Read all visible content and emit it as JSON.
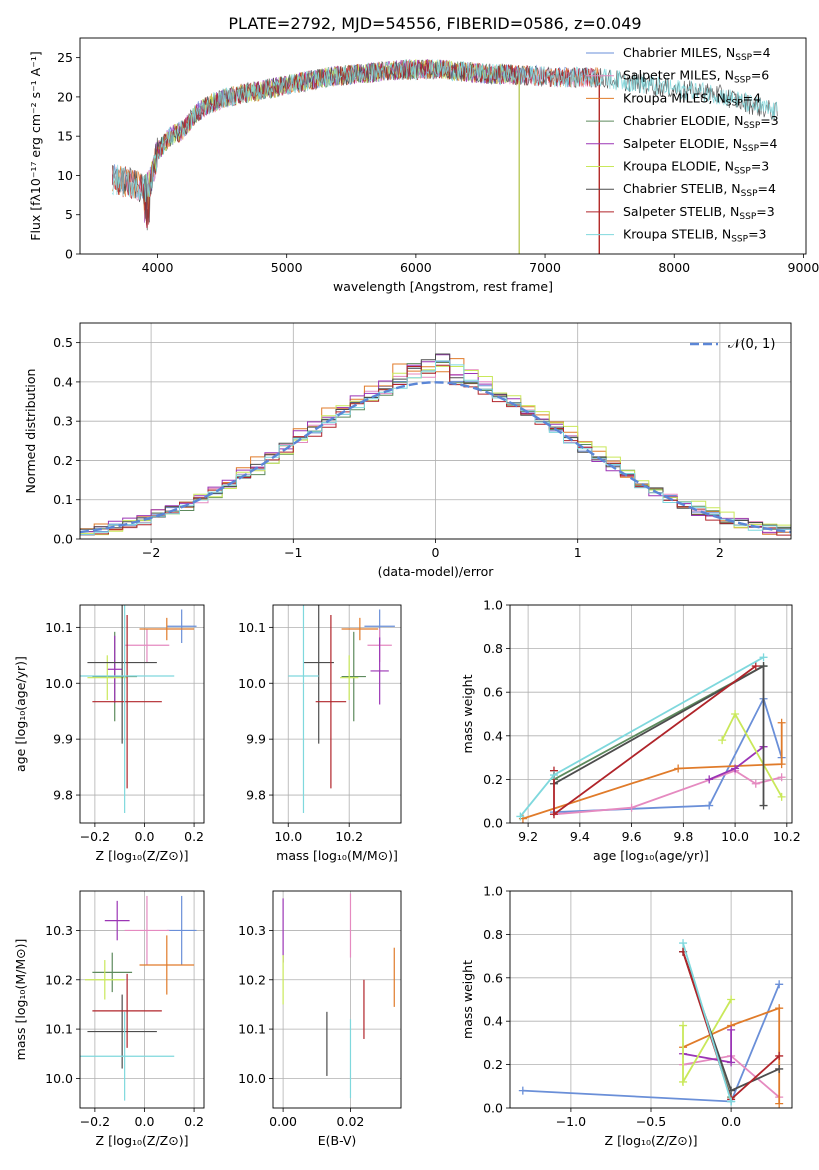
{
  "figure_title": "PLATE=2792, MJD=54556, FIBERID=0586, z=0.049",
  "colors": {
    "chabrier_miles": "#6a8fd8",
    "salpeter_miles": "#e58ac0",
    "kroupa_miles": "#e07b2a",
    "chabrier_elodie": "#5d8a5d",
    "salpeter_elodie": "#9b35b5",
    "kroupa_elodie": "#c9e85a",
    "chabrier_stelib": "#4d4d4d",
    "salpeter_stelib": "#b0242a",
    "kroupa_stelib": "#7fd8dd",
    "normal": "#5b86d6"
  },
  "chart_data": [
    {
      "id": "spectrum",
      "type": "line",
      "xlabel": "wavelength [Angstrom, rest frame]",
      "ylabel": "Flux [fλ10⁻¹⁷ erg cm⁻² s⁻¹ A⁻¹]",
      "xlim": [
        3400,
        9020
      ],
      "ylim": [
        0,
        27.5
      ],
      "xticks": [
        4000,
        5000,
        6000,
        7000,
        8000,
        9000
      ],
      "yticks": [
        0,
        5,
        10,
        15,
        20,
        25
      ],
      "grid": false,
      "legend_position": "top-right",
      "continuum": {
        "x": [
          3650,
          3800,
          3900,
          3950,
          4000,
          4100,
          4200,
          4300,
          4400,
          4500,
          4700,
          5000,
          5300,
          5600,
          5900,
          6200,
          6500,
          6800,
          7100,
          7400,
          7700,
          8000,
          8300,
          8600,
          8800
        ],
        "y": [
          9.5,
          9.0,
          8.0,
          9.5,
          13.0,
          15.0,
          15.8,
          18.0,
          19.0,
          19.8,
          20.5,
          21.5,
          22.5,
          23.0,
          23.5,
          23.5,
          23.0,
          22.8,
          22.5,
          22.5,
          21.8,
          21.0,
          20.5,
          19.0,
          18.0
        ]
      },
      "series": [
        {
          "name": "Chabrier MILES, N_SSP=4",
          "color": "#6a8fd8",
          "xrange": [
            3650,
            7420
          ]
        },
        {
          "name": "Salpeter MILES, N_SSP=6",
          "color": "#e58ac0",
          "xrange": [
            3650,
            7420
          ]
        },
        {
          "name": "Kroupa MILES, N_SSP=4",
          "color": "#e07b2a",
          "xrange": [
            3650,
            7420
          ]
        },
        {
          "name": "Chabrier ELODIE, N_SSP=3",
          "color": "#5d8a5d",
          "xrange": [
            3900,
            6800
          ]
        },
        {
          "name": "Salpeter ELODIE, N_SSP=4",
          "color": "#9b35b5",
          "xrange": [
            3900,
            6800
          ]
        },
        {
          "name": "Kroupa ELODIE, N_SSP=3",
          "color": "#c9e85a",
          "xrange": [
            3900,
            6800
          ]
        },
        {
          "name": "Chabrier STELIB, N_SSP=4",
          "color": "#4d4d4d",
          "xrange": [
            3650,
            8800
          ]
        },
        {
          "name": "Salpeter STELIB, N_SSP=3",
          "color": "#b0242a",
          "xrange": [
            3650,
            7420
          ]
        },
        {
          "name": "Kroupa STELIB, N_SSP=3",
          "color": "#7fd8dd",
          "xrange": [
            3650,
            8800
          ]
        }
      ],
      "legend_entries": [
        {
          "base": "Chabrier MILES, N",
          "sub": "SSP",
          "tail": "=4",
          "color": "#6a8fd8"
        },
        {
          "base": "Salpeter MILES, N",
          "sub": "SSP",
          "tail": "=6",
          "color": "#e58ac0"
        },
        {
          "base": "Kroupa MILES, N",
          "sub": "SSP",
          "tail": "=4",
          "color": "#e07b2a"
        },
        {
          "base": "Chabrier ELODIE, N",
          "sub": "SSP",
          "tail": "=3",
          "color": "#5d8a5d"
        },
        {
          "base": "Salpeter ELODIE, N",
          "sub": "SSP",
          "tail": "=4",
          "color": "#9b35b5"
        },
        {
          "base": "Kroupa ELODIE, N",
          "sub": "SSP",
          "tail": "=3",
          "color": "#c9e85a"
        },
        {
          "base": "Chabrier STELIB, N",
          "sub": "SSP",
          "tail": "=4",
          "color": "#4d4d4d"
        },
        {
          "base": "Salpeter STELIB, N",
          "sub": "SSP",
          "tail": "=3",
          "color": "#b0242a"
        },
        {
          "base": "Kroupa STELIB, N",
          "sub": "SSP",
          "tail": "=3",
          "color": "#7fd8dd"
        }
      ]
    },
    {
      "id": "residual_hist",
      "type": "histogram",
      "xlabel": "(data-model)/error",
      "ylabel": "Normed distribution",
      "xlim": [
        -2.5,
        2.5
      ],
      "ylim": [
        0,
        0.55
      ],
      "xticks": [
        -2,
        -1,
        0,
        1,
        2
      ],
      "yticks": [
        0.0,
        0.1,
        0.2,
        0.3,
        0.4,
        0.5
      ],
      "grid": true,
      "legend_position": "top-right",
      "reference": {
        "name": "𝒩(0, 1)",
        "mu": 0,
        "sigma": 1,
        "color": "#5b86d6"
      },
      "bin_width": 0.1,
      "series": [
        {
          "color": "#6a8fd8",
          "offset": 0.0,
          "amp": 1.0,
          "jitter": 0.01
        },
        {
          "color": "#e58ac0",
          "offset": 0.02,
          "amp": 1.02,
          "jitter": 0.012
        },
        {
          "color": "#e07b2a",
          "offset": -0.03,
          "amp": 1.05,
          "jitter": 0.015
        },
        {
          "color": "#5d8a5d",
          "offset": 0.03,
          "amp": 1.0,
          "jitter": 0.012
        },
        {
          "color": "#9b35b5",
          "offset": -0.02,
          "amp": 1.03,
          "jitter": 0.013
        },
        {
          "color": "#c9e85a",
          "offset": 0.04,
          "amp": 1.04,
          "jitter": 0.016
        },
        {
          "color": "#4d4d4d",
          "offset": -0.01,
          "amp": 1.01,
          "jitter": 0.011
        },
        {
          "color": "#b0242a",
          "offset": 0.01,
          "amp": 0.99,
          "jitter": 0.012
        },
        {
          "color": "#7fd8dd",
          "offset": 0.0,
          "amp": 1.0,
          "jitter": 0.01
        }
      ]
    },
    {
      "id": "age_vs_Z",
      "type": "scatter",
      "xlabel": "Z [log₁₀(Z/Z⊙)]",
      "ylabel": "age  [log₁₀(age/yr)]",
      "xlim": [
        -0.26,
        0.24
      ],
      "ylim": [
        9.75,
        10.14
      ],
      "xticks": [
        -0.2,
        0.0,
        0.2
      ],
      "yticks": [
        9.8,
        9.9,
        10.0,
        10.1
      ],
      "grid": true,
      "points": [
        {
          "color": "#6a8fd8",
          "x": 0.15,
          "xerr": 0.06,
          "y": 10.102,
          "yerr": 0.03
        },
        {
          "color": "#e58ac0",
          "x": 0.01,
          "xerr": 0.09,
          "y": 10.068,
          "yerr": 0.03
        },
        {
          "color": "#e07b2a",
          "x": 0.09,
          "xerr": 0.11,
          "y": 10.097,
          "yerr": 0.02
        },
        {
          "color": "#5d8a5d",
          "x": -0.12,
          "xerr": 0.09,
          "y": 10.012,
          "yerr": 0.08
        },
        {
          "color": "#9b35b5",
          "x": -0.12,
          "xerr": 0.03,
          "y": 10.025,
          "yerr": 0.06
        },
        {
          "color": "#c9e85a",
          "x": -0.15,
          "xerr": 0.08,
          "y": 10.01,
          "yerr": 0.04
        },
        {
          "color": "#4d4d4d",
          "x": -0.09,
          "xerr": 0.14,
          "y": 10.037,
          "yerr": 0.145
        },
        {
          "color": "#b0242a",
          "x": -0.07,
          "xerr": 0.14,
          "y": 9.967,
          "yerr": 0.155
        },
        {
          "color": "#7fd8dd",
          "x": -0.08,
          "xerr": 0.2,
          "y": 10.013,
          "yerr": 0.245
        }
      ]
    },
    {
      "id": "age_vs_mass",
      "type": "scatter",
      "xlabel": "mass [log₁₀(M/M⊙)]",
      "ylabel": "",
      "xlim": [
        9.95,
        10.37
      ],
      "ylim": [
        9.75,
        10.14
      ],
      "xticks": [
        10.0,
        10.2
      ],
      "yticks": [
        9.8,
        9.9,
        10.0,
        10.1
      ],
      "grid": true,
      "points": [
        {
          "color": "#6a8fd8",
          "x": 10.3,
          "xerr": 0.05,
          "y": 10.102,
          "yerr": 0.03
        },
        {
          "color": "#e58ac0",
          "x": 10.3,
          "xerr": 0.04,
          "y": 10.068,
          "yerr": 0.03
        },
        {
          "color": "#e07b2a",
          "x": 10.235,
          "xerr": 0.06,
          "y": 10.097,
          "yerr": 0.02
        },
        {
          "color": "#5d8a5d",
          "x": 10.215,
          "xerr": 0.04,
          "y": 10.012,
          "yerr": 0.08
        },
        {
          "color": "#9b35b5",
          "x": 10.3,
          "xerr": 0.03,
          "y": 10.022,
          "yerr": 0.06
        },
        {
          "color": "#c9e85a",
          "x": 10.2,
          "xerr": 0.03,
          "y": 10.01,
          "yerr": 0.04
        },
        {
          "color": "#4d4d4d",
          "x": 10.1,
          "xerr": 0.05,
          "y": 10.037,
          "yerr": 0.145
        },
        {
          "color": "#b0242a",
          "x": 10.14,
          "xerr": 0.05,
          "y": 9.967,
          "yerr": 0.155
        },
        {
          "color": "#7fd8dd",
          "x": 10.05,
          "xerr": 0.05,
          "y": 10.013,
          "yerr": 0.245
        }
      ]
    },
    {
      "id": "weight_vs_age",
      "type": "line",
      "xlabel": "age  [log₁₀(age/yr)]",
      "ylabel": "mass weight",
      "xlim": [
        9.13,
        10.22
      ],
      "ylim": [
        0,
        1.0
      ],
      "xticks": [
        9.2,
        9.4,
        9.6,
        9.8,
        10.0,
        10.2
      ],
      "yticks": [
        0.0,
        0.2,
        0.4,
        0.6,
        0.8,
        1.0
      ],
      "grid": true,
      "series": [
        {
          "color": "#6a8fd8",
          "x": [
            9.3,
            9.9,
            10.11,
            10.18
          ],
          "y": [
            0.05,
            0.08,
            0.57,
            0.3
          ]
        },
        {
          "color": "#e58ac0",
          "x": [
            9.3,
            9.6,
            10.0,
            10.08,
            10.18
          ],
          "y": [
            0.04,
            0.07,
            0.24,
            0.18,
            0.21
          ]
        },
        {
          "color": "#e07b2a",
          "x": [
            9.18,
            9.78,
            10.18,
            10.18
          ],
          "y": [
            0.02,
            0.25,
            0.27,
            0.46
          ]
        },
        {
          "color": "#5d8a5d",
          "x": [
            9.3,
            10.11
          ],
          "y": [
            0.2,
            0.72
          ]
        },
        {
          "color": "#9b35b5",
          "x": [
            9.9,
            10.0,
            10.11
          ],
          "y": [
            0.2,
            0.25,
            0.35
          ]
        },
        {
          "color": "#c9e85a",
          "x": [
            9.95,
            10.0,
            10.18
          ],
          "y": [
            0.38,
            0.5,
            0.12
          ]
        },
        {
          "color": "#4d4d4d",
          "x": [
            9.3,
            10.11,
            10.11
          ],
          "y": [
            0.18,
            0.72,
            0.08
          ]
        },
        {
          "color": "#b0242a",
          "x": [
            9.3,
            9.3,
            10.08
          ],
          "y": [
            0.24,
            0.04,
            0.72
          ]
        },
        {
          "color": "#7fd8dd",
          "x": [
            9.17,
            9.3,
            10.11
          ],
          "y": [
            0.03,
            0.22,
            0.76
          ]
        }
      ]
    },
    {
      "id": "mass_vs_Z",
      "type": "scatter",
      "xlabel": "Z [log₁₀(Z/Z⊙)]",
      "ylabel": "mass [log₁₀(M/M⊙)]",
      "xlim": [
        -0.26,
        0.24
      ],
      "ylim": [
        9.94,
        10.38
      ],
      "xticks": [
        -0.2,
        0.0,
        0.2
      ],
      "yticks": [
        10.0,
        10.1,
        10.2,
        10.3
      ],
      "grid": true,
      "points": [
        {
          "color": "#6a8fd8",
          "x": 0.15,
          "xerr": 0.06,
          "y": 10.3,
          "yerr": 0.07
        },
        {
          "color": "#e58ac0",
          "x": 0.01,
          "xerr": 0.09,
          "y": 10.3,
          "yerr": 0.07
        },
        {
          "color": "#e07b2a",
          "x": 0.09,
          "xerr": 0.11,
          "y": 10.23,
          "yerr": 0.06
        },
        {
          "color": "#5d8a5d",
          "x": -0.13,
          "xerr": 0.08,
          "y": 10.215,
          "yerr": 0.04
        },
        {
          "color": "#9b35b5",
          "x": -0.11,
          "xerr": 0.05,
          "y": 10.32,
          "yerr": 0.04
        },
        {
          "color": "#c9e85a",
          "x": -0.16,
          "xerr": 0.08,
          "y": 10.2,
          "yerr": 0.04
        },
        {
          "color": "#4d4d4d",
          "x": -0.09,
          "xerr": 0.14,
          "y": 10.095,
          "yerr": 0.075
        },
        {
          "color": "#b0242a",
          "x": -0.07,
          "xerr": 0.14,
          "y": 10.137,
          "yerr": 0.075
        },
        {
          "color": "#7fd8dd",
          "x": -0.08,
          "xerr": 0.2,
          "y": 10.045,
          "yerr": 0.09
        }
      ]
    },
    {
      "id": "mass_vs_ebv",
      "type": "scatter",
      "xlabel": "E(B-V)",
      "ylabel": "",
      "xlim": [
        -0.003,
        0.035
      ],
      "ylim": [
        9.94,
        10.38
      ],
      "xticks": [
        0.0,
        0.02
      ],
      "xtick_labels": [
        "0.00",
        "0.02"
      ],
      "yticks": [
        10.0,
        10.1,
        10.2,
        10.3
      ],
      "grid": true,
      "points": [
        {
          "color": "#9b35b5",
          "x": 0.0,
          "y": 10.3,
          "yerr": 0.065
        },
        {
          "color": "#c9e85a",
          "x": 0.0,
          "y": 10.2,
          "yerr": 0.05
        },
        {
          "color": "#e58ac0",
          "x": 0.02,
          "y": 10.31,
          "yerr": 0.065
        },
        {
          "color": "#e07b2a",
          "x": 0.033,
          "y": 10.205,
          "yerr": 0.06
        },
        {
          "color": "#b0242a",
          "x": 0.024,
          "y": 10.14,
          "yerr": 0.06
        },
        {
          "color": "#4d4d4d",
          "x": 0.013,
          "y": 10.07,
          "yerr": 0.065
        },
        {
          "color": "#7fd8dd",
          "x": 0.02,
          "y": 10.04,
          "yerr": 0.08
        }
      ]
    },
    {
      "id": "weight_vs_Z",
      "type": "line",
      "xlabel": "Z [log₁₀(Z/Z⊙)]",
      "ylabel": "mass weight",
      "xlim": [
        -1.38,
        0.38
      ],
      "ylim": [
        0,
        1.0
      ],
      "xticks": [
        -1.0,
        -0.5,
        0.0
      ],
      "xtick_labels": [
        "−1.0",
        "−0.5",
        "0.0"
      ],
      "yticks": [
        0.0,
        0.2,
        0.4,
        0.6,
        0.8,
        1.0
      ],
      "grid": true,
      "series": [
        {
          "color": "#6a8fd8",
          "x": [
            -1.3,
            0.0,
            0.3
          ],
          "y": [
            0.08,
            0.03,
            0.57
          ]
        },
        {
          "color": "#e58ac0",
          "x": [
            -0.3,
            0.0,
            0.3
          ],
          "y": [
            0.2,
            0.24,
            0.05
          ]
        },
        {
          "color": "#e07b2a",
          "x": [
            -0.3,
            0.0,
            0.3,
            0.3
          ],
          "y": [
            0.28,
            0.38,
            0.46,
            0.02
          ]
        },
        {
          "color": "#5d8a5d",
          "x": [
            -0.3,
            0.0
          ],
          "y": [
            0.72,
            0.05
          ]
        },
        {
          "color": "#9b35b5",
          "x": [
            -0.3,
            0.0,
            0.0
          ],
          "y": [
            0.25,
            0.21,
            0.36
          ]
        },
        {
          "color": "#c9e85a",
          "x": [
            -0.3,
            -0.3,
            0.0
          ],
          "y": [
            0.38,
            0.12,
            0.5
          ]
        },
        {
          "color": "#4d4d4d",
          "x": [
            -0.3,
            0.0,
            0.3
          ],
          "y": [
            0.72,
            0.08,
            0.18
          ]
        },
        {
          "color": "#b0242a",
          "x": [
            -0.3,
            0.0,
            0.3
          ],
          "y": [
            0.72,
            0.04,
            0.24
          ]
        },
        {
          "color": "#7fd8dd",
          "x": [
            -0.3,
            0.0,
            0.0
          ],
          "y": [
            0.76,
            0.03,
            0.03
          ]
        }
      ]
    }
  ]
}
